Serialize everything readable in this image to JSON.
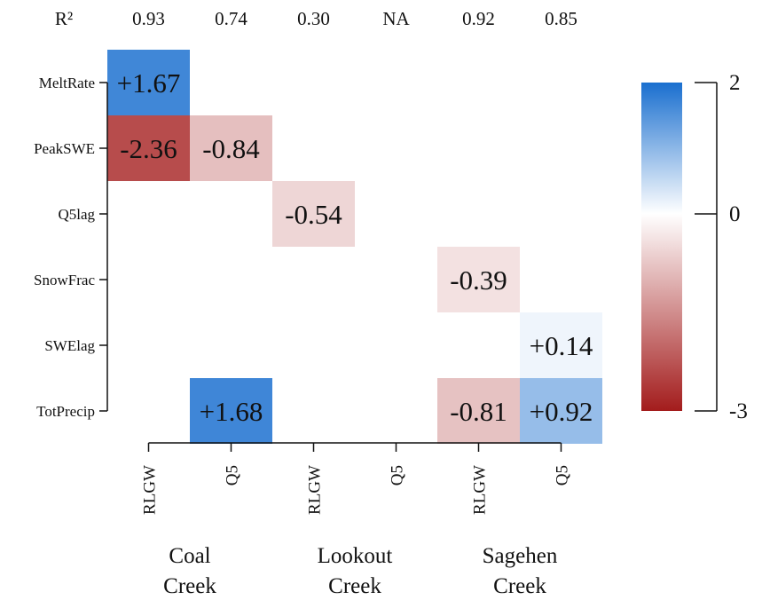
{
  "chart_data": {
    "type": "heatmap",
    "r2_label": "R²",
    "r2_values": [
      "0.93",
      "0.74",
      "0.30",
      "NA",
      "0.92",
      "0.85"
    ],
    "columns": [
      "RLGW",
      "Q5",
      "RLGW",
      "Q5",
      "RLGW",
      "Q5"
    ],
    "groups": [
      {
        "line1": "Coal",
        "line2": "Creek"
      },
      {
        "line1": "Lookout",
        "line2": "Creek"
      },
      {
        "line1": "Sagehen",
        "line2": "Creek"
      }
    ],
    "rows": [
      "MeltRate",
      "PeakSWE",
      "Q5lag",
      "SnowFrac",
      "SWElag",
      "TotPrecip"
    ],
    "cells": [
      {
        "row": 0,
        "col": 0,
        "value": 1.67,
        "label": "+1.67"
      },
      {
        "row": 1,
        "col": 0,
        "value": -2.36,
        "label": "-2.36"
      },
      {
        "row": 1,
        "col": 1,
        "value": -0.84,
        "label": "-0.84"
      },
      {
        "row": 2,
        "col": 2,
        "value": -0.54,
        "label": "-0.54"
      },
      {
        "row": 3,
        "col": 4,
        "value": -0.39,
        "label": "-0.39"
      },
      {
        "row": 4,
        "col": 5,
        "value": 0.14,
        "label": "+0.14"
      },
      {
        "row": 5,
        "col": 1,
        "value": 1.68,
        "label": "+1.68"
      },
      {
        "row": 5,
        "col": 4,
        "value": -0.81,
        "label": "-0.81"
      },
      {
        "row": 5,
        "col": 5,
        "value": 0.92,
        "label": "+0.92"
      }
    ],
    "colorbar": {
      "min": -3,
      "max": 2,
      "ticks": [
        "2",
        "0",
        "-3"
      ],
      "colors": {
        "low": "#a31c1c",
        "mid": "#ffffff",
        "high": "#1a6fcf"
      }
    }
  }
}
